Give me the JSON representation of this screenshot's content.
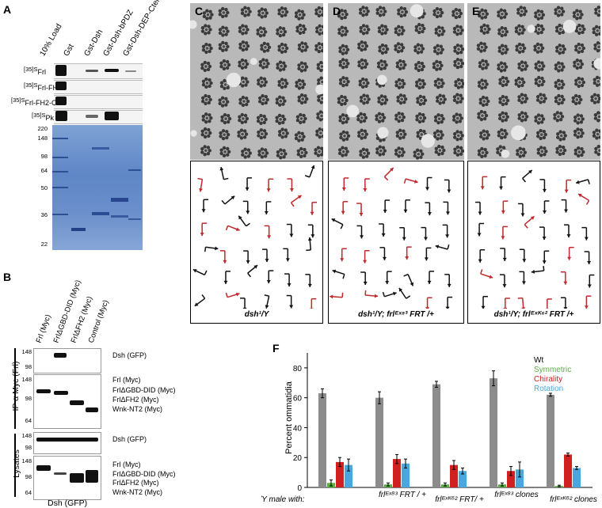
{
  "panels": {
    "A": "A",
    "B": "B",
    "C": "C",
    "D": "D",
    "E": "E",
    "F": "F"
  },
  "panelA": {
    "lanes": [
      "10% Load",
      "Gst",
      "Gst-Dsh",
      "Gst-Dsh-bPDZ",
      "Gst-Dsh-DEP-Cterm"
    ],
    "rows": [
      {
        "prefix": "[35]S",
        "label": "Frl"
      },
      {
        "prefix": "[35]S",
        "label": "Frl-FH2"
      },
      {
        "prefix": "[35]S",
        "label": "Frl-FH2-CT"
      },
      {
        "prefix": "[35]S",
        "label": "Pk"
      }
    ],
    "markers": [
      "220",
      "148",
      "98",
      "64",
      "50",
      "36",
      "22"
    ]
  },
  "panelB": {
    "lanes": [
      "Frl (Myc)",
      "FrlΔGBD-DID (Myc)",
      "FrlΔFH2 (Myc)",
      "Control (Myc)"
    ],
    "ip_label": "IP α Myc (Frl)",
    "lysates_label": "Lysates",
    "bottom_label": "Dsh (GFP)",
    "blots": [
      {
        "markers": [
          "148",
          "98"
        ],
        "labels": [
          "Dsh (GFP)"
        ]
      },
      {
        "markers": [
          "148",
          "98",
          "64"
        ],
        "labels": [
          "Frl (Myc)",
          "FrlΔGBD-DID (Myc)",
          "FrlΔFH2 (Myc)",
          "Wnk-NT2 (Myc)"
        ]
      },
      {
        "markers": [
          "148",
          "98"
        ],
        "labels": [
          "Dsh (GFP)"
        ]
      },
      {
        "markers": [
          "148",
          "98",
          "64"
        ],
        "labels": [
          "Frl (Myc)",
          "FrlΔGBD-DID (Myc)",
          "FrlΔFH2 (Myc)",
          "Wnk-NT2 (Myc)"
        ]
      }
    ]
  },
  "genotypes": {
    "C": "dsh¹/Y",
    "D": "dsh¹/Y; frlᴱˣ⁸³ FRT /+",
    "E": "dsh¹/Y; frlᴱˣᴷ⁶² FRT /+"
  },
  "chart_data": {
    "type": "bar",
    "ylabel": "Percent ommatidia",
    "ylim": [
      0,
      90
    ],
    "yticks": [
      0,
      20,
      40,
      60,
      80
    ],
    "xlabel_prefix": "dsh¹/Y male with:",
    "categories": [
      "",
      "frlᴱˣ⁸³ FRT / +",
      "frlᴱˣᴷ⁶² FRT/ +",
      "frlᴱˣ⁸³ clones",
      "frlᴱˣᴷ⁶² clones"
    ],
    "series": [
      {
        "name": "Wt",
        "color": "#8c8c8c",
        "values": [
          63,
          60,
          69,
          73,
          62
        ],
        "errors": [
          3,
          4,
          2,
          5,
          1
        ]
      },
      {
        "name": "Symmetric",
        "color": "#58b040",
        "values": [
          3,
          2,
          2,
          2,
          1
        ],
        "errors": [
          2,
          1,
          1,
          1,
          0.5
        ]
      },
      {
        "name": "Chirality",
        "color": "#d02020",
        "values": [
          17,
          19,
          15,
          11,
          22
        ],
        "errors": [
          3,
          3,
          3,
          3,
          1
        ]
      },
      {
        "name": "Rotation",
        "color": "#4aa8d8",
        "values": [
          15,
          16,
          11,
          12,
          13
        ],
        "errors": [
          4,
          3,
          2,
          5,
          1
        ]
      }
    ]
  }
}
